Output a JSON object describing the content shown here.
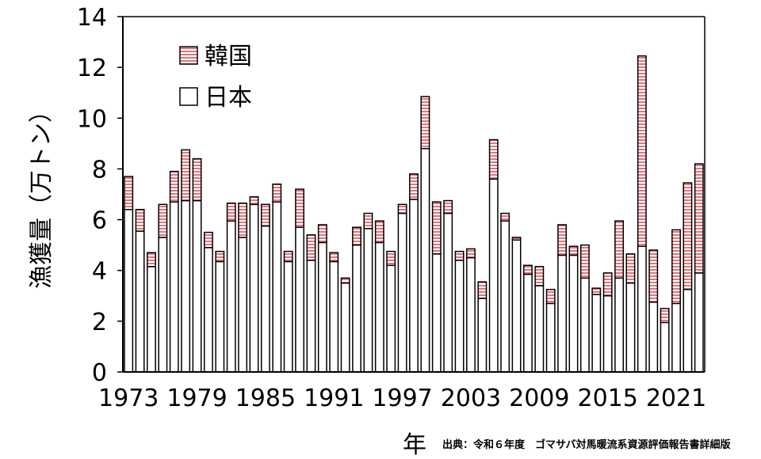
{
  "chart_data": {
    "type": "bar",
    "stacked": true,
    "ylabel": "漁獲量（万トン）",
    "xlabel": "年",
    "ylim": [
      0,
      14
    ],
    "yticks": [
      0,
      2,
      4,
      6,
      8,
      10,
      12,
      14
    ],
    "xtick_labels": [
      "1973",
      "1979",
      "1985",
      "1991",
      "1997",
      "2003",
      "2009",
      "2015",
      "2021"
    ],
    "years": [
      1973,
      1974,
      1975,
      1976,
      1977,
      1978,
      1979,
      1980,
      1981,
      1982,
      1983,
      1984,
      1985,
      1986,
      1987,
      1988,
      1989,
      1990,
      1991,
      1992,
      1993,
      1994,
      1995,
      1996,
      1997,
      1998,
      1999,
      2000,
      2001,
      2002,
      2003,
      2004,
      2005,
      2006,
      2007,
      2008,
      2009,
      2010,
      2011,
      2012,
      2013,
      2014,
      2015,
      2016,
      2017,
      2018,
      2019,
      2020,
      2021,
      2022,
      2023
    ],
    "series": [
      {
        "name": "日本",
        "values": [
          6.4,
          5.55,
          4.15,
          5.3,
          6.7,
          6.75,
          6.75,
          4.9,
          4.35,
          5.95,
          5.3,
          6.6,
          5.75,
          6.7,
          4.35,
          5.7,
          4.4,
          5.1,
          4.35,
          3.5,
          5.0,
          5.65,
          5.1,
          4.2,
          6.25,
          6.8,
          8.8,
          4.65,
          6.25,
          4.4,
          4.5,
          2.9,
          7.6,
          5.95,
          5.2,
          3.85,
          3.4,
          2.7,
          4.6,
          4.6,
          3.7,
          3.05,
          3.0,
          3.7,
          3.5,
          4.95,
          2.75,
          1.95,
          2.7,
          3.25,
          3.9
        ]
      },
      {
        "name": "韓国",
        "values": [
          1.3,
          0.85,
          0.55,
          1.3,
          1.2,
          2.0,
          1.65,
          0.6,
          0.4,
          0.7,
          1.35,
          0.3,
          0.85,
          0.7,
          0.4,
          1.5,
          1.0,
          0.7,
          0.35,
          0.2,
          0.7,
          0.6,
          0.85,
          0.55,
          0.35,
          1.0,
          2.05,
          2.05,
          0.5,
          0.35,
          0.35,
          0.65,
          1.55,
          0.3,
          0.1,
          0.35,
          0.75,
          0.55,
          1.2,
          0.35,
          1.3,
          0.25,
          0.9,
          2.25,
          1.15,
          7.5,
          2.05,
          0.55,
          2.9,
          4.2,
          4.3
        ]
      }
    ],
    "legend": {
      "placement": "top-left"
    },
    "colors": {
      "japan_fill": "#ffffff",
      "korea_stripe": "#e8747a",
      "outline": "#000000"
    }
  },
  "source_note": "出典：令和６年度　ゴマサバ対馬暖流系資源評価報告書詳細版"
}
